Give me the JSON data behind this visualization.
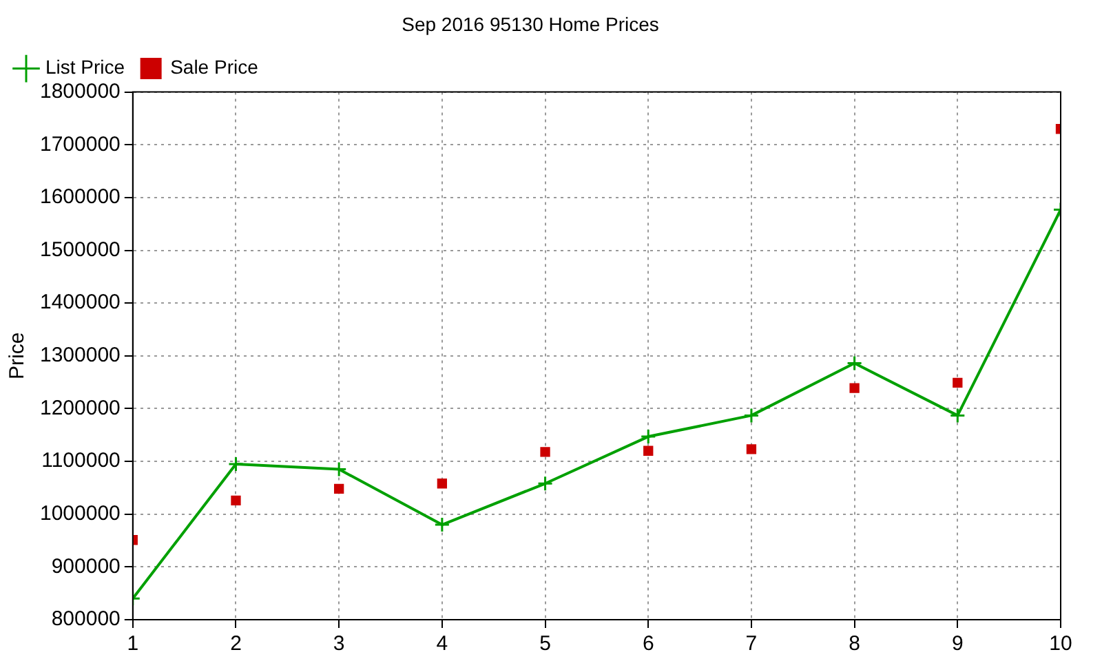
{
  "chart_data": {
    "type": "line",
    "title": "Sep 2016 95130 Home Prices",
    "ylabel": "Price",
    "x": [
      1,
      2,
      3,
      4,
      5,
      6,
      7,
      8,
      9,
      10
    ],
    "xlim": [
      1,
      10
    ],
    "xticks": [
      1,
      2,
      3,
      4,
      5,
      6,
      7,
      8,
      9,
      10
    ],
    "ylim": [
      800000,
      1800000
    ],
    "yticks": [
      800000,
      900000,
      1000000,
      1100000,
      1200000,
      1300000,
      1400000,
      1500000,
      1600000,
      1700000,
      1800000
    ],
    "grid": true,
    "legend": "top left",
    "series": [
      {
        "name": "List Price",
        "color": "#00a000",
        "marker": "cross",
        "values": [
          840000,
          1095000,
          1085000,
          980000,
          1058000,
          1147000,
          1187000,
          1286000,
          1187000,
          1577000
        ]
      },
      {
        "name": "Sale Price",
        "type": "scatter",
        "color": "#cc0000",
        "marker": "square",
        "values": [
          951000,
          1026000,
          1048000,
          1058000,
          1118000,
          1120000,
          1123000,
          1239000,
          1249000,
          1730000
        ]
      }
    ]
  }
}
